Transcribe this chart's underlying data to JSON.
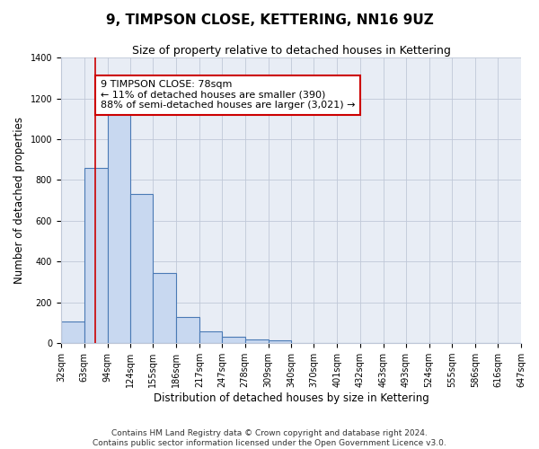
{
  "title": "9, TIMPSON CLOSE, KETTERING, NN16 9UZ",
  "subtitle": "Size of property relative to detached houses in Kettering",
  "xlabel": "Distribution of detached houses by size in Kettering",
  "ylabel": "Number of detached properties",
  "bar_values": [
    105,
    860,
    1140,
    730,
    345,
    130,
    60,
    30,
    20,
    15,
    0,
    0,
    0,
    0,
    0,
    0,
    0,
    0,
    0,
    0
  ],
  "bar_labels": [
    "32sqm",
    "63sqm",
    "94sqm",
    "124sqm",
    "155sqm",
    "186sqm",
    "217sqm",
    "247sqm",
    "278sqm",
    "309sqm",
    "340sqm",
    "370sqm",
    "401sqm",
    "432sqm",
    "463sqm",
    "493sqm",
    "524sqm",
    "555sqm",
    "586sqm",
    "616sqm",
    "647sqm"
  ],
  "bar_color": "#c8d8f0",
  "bar_edgecolor": "#4a7ab5",
  "bar_linewidth": 0.8,
  "grid_color": "#c0c8d8",
  "background_color": "#e8edf5",
  "ylim": [
    0,
    1400
  ],
  "yticks": [
    0,
    200,
    400,
    600,
    800,
    1000,
    1200,
    1400
  ],
  "red_line_x": 78,
  "red_line_color": "#cc0000",
  "annotation_text": "9 TIMPSON CLOSE: 78sqm\n← 11% of detached houses are smaller (390)\n88% of semi-detached houses are larger (3,021) →",
  "annotation_box_edgecolor": "#cc0000",
  "bin_edges": [
    32,
    63,
    94,
    124,
    155,
    186,
    217,
    247,
    278,
    309,
    340,
    370,
    401,
    432,
    463,
    493,
    524,
    555,
    586,
    616,
    647
  ],
  "footer_text1": "Contains HM Land Registry data © Crown copyright and database right 2024.",
  "footer_text2": "Contains public sector information licensed under the Open Government Licence v3.0.",
  "title_fontsize": 11,
  "subtitle_fontsize": 9,
  "axis_label_fontsize": 8.5,
  "tick_fontsize": 7,
  "annotation_fontsize": 8,
  "footer_fontsize": 6.5
}
